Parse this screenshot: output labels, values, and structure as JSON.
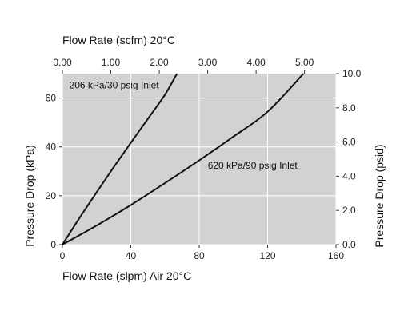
{
  "chart_data": {
    "type": "line",
    "grid": true,
    "bottom_axis": {
      "label": "Flow Rate (slpm) Air 20°C",
      "range": [
        0,
        160
      ],
      "ticks": [
        "0",
        "40",
        "80",
        "120",
        "160"
      ]
    },
    "top_axis": {
      "label": "Flow Rate (scfm) 20°C",
      "range": [
        0,
        5.65
      ],
      "ticks": [
        "0.00",
        "1.00",
        "2.00",
        "3.00",
        "4.00",
        "5.00"
      ]
    },
    "left_axis": {
      "label": "Pressure Drop (kPa)",
      "range": [
        0,
        70
      ],
      "ticks": [
        "0",
        "20",
        "40",
        "60"
      ]
    },
    "right_axis": {
      "label": "Pressure Drop (psid)",
      "range": [
        0,
        10.0
      ],
      "ticks": [
        "0.0",
        "2.0",
        "4.0",
        "6.0",
        "8.0",
        "10.0"
      ]
    },
    "series": [
      {
        "name": "206 kPa/30 psig Inlet",
        "x": [
          0,
          10,
          20,
          30,
          40,
          50,
          60,
          67
        ],
        "y": [
          0,
          10.9,
          21.4,
          31.7,
          41.7,
          51.5,
          61.4,
          70
        ]
      },
      {
        "name": "620 kPa/90 psig Inlet",
        "x": [
          0,
          20,
          40,
          60,
          80,
          100,
          120,
          141
        ],
        "y": [
          0,
          7.8,
          16.2,
          25.2,
          34.5,
          44.2,
          54.4,
          70
        ]
      }
    ],
    "annotations": [
      {
        "text": "206 kPa/30 psig Inlet",
        "x": 4,
        "y": 64
      },
      {
        "text": "620 kPa/90 psig Inlet",
        "x": 85,
        "y": 31
      }
    ]
  },
  "colors": {
    "plot_background": "#d2d2d2",
    "grid": "#ffffff",
    "line": "#111111"
  }
}
